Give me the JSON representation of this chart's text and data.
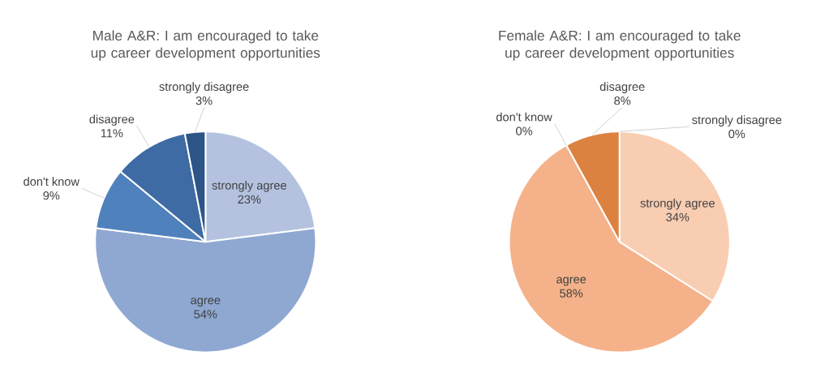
{
  "chart_data": [
    {
      "type": "pie",
      "title": "Male A&R: I am encouraged to take up career development opportunities",
      "categories": [
        "strongly agree",
        "agree",
        "don't know",
        "disagree",
        "strongly disagree"
      ],
      "values": [
        23,
        54,
        9,
        11,
        3
      ],
      "value_labels": [
        "23%",
        "54%",
        "9%",
        "11%",
        "3%"
      ],
      "colors": [
        "#b4c2e0",
        "#8fa8d2",
        "#4f81bd",
        "#3e6ba3",
        "#2d5487"
      ]
    },
    {
      "type": "pie",
      "title": "Female A&R: I am encouraged to take up career development opportunities",
      "categories": [
        "strongly agree",
        "agree",
        "don't know",
        "disagree",
        "strongly disagree"
      ],
      "values": [
        34,
        58,
        0,
        8,
        0
      ],
      "value_labels": [
        "34%",
        "58%",
        "0%",
        "8%",
        "0%"
      ],
      "colors": [
        "#f9cdb2",
        "#f5b28a",
        "#e8955a",
        "#dc8240",
        "#c55a11"
      ]
    }
  ]
}
